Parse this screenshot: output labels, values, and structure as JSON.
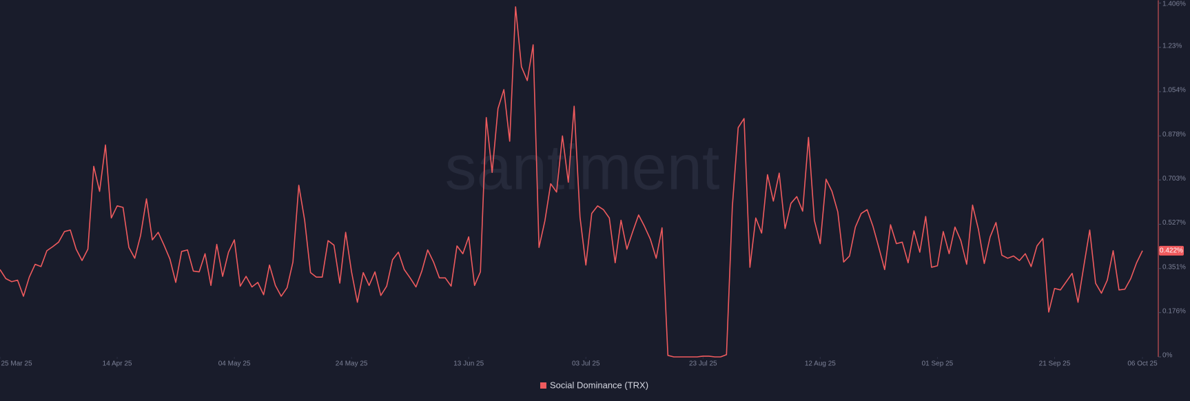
{
  "chart_data": {
    "type": "line",
    "watermark": "santiment",
    "x": [
      "2025-03-25",
      "2025-03-26",
      "2025-03-27",
      "2025-03-28",
      "2025-03-29",
      "2025-03-30",
      "2025-03-31",
      "2025-04-01",
      "2025-04-02",
      "2025-04-03",
      "2025-04-04",
      "2025-04-05",
      "2025-04-06",
      "2025-04-07",
      "2025-04-08",
      "2025-04-09",
      "2025-04-10",
      "2025-04-11",
      "2025-04-12",
      "2025-04-13",
      "2025-04-14",
      "2025-04-15",
      "2025-04-16",
      "2025-04-17",
      "2025-04-18",
      "2025-04-19",
      "2025-04-20",
      "2025-04-21",
      "2025-04-22",
      "2025-04-23",
      "2025-04-24",
      "2025-04-25",
      "2025-04-26",
      "2025-04-27",
      "2025-04-28",
      "2025-04-29",
      "2025-04-30",
      "2025-05-01",
      "2025-05-02",
      "2025-05-03",
      "2025-05-04",
      "2025-05-05",
      "2025-05-06",
      "2025-05-07",
      "2025-05-08",
      "2025-05-09",
      "2025-05-10",
      "2025-05-11",
      "2025-05-12",
      "2025-05-13",
      "2025-05-14",
      "2025-05-15",
      "2025-05-16",
      "2025-05-17",
      "2025-05-18",
      "2025-05-19",
      "2025-05-20",
      "2025-05-21",
      "2025-05-22",
      "2025-05-23",
      "2025-05-24",
      "2025-05-25",
      "2025-05-26",
      "2025-05-27",
      "2025-05-28",
      "2025-05-29",
      "2025-05-30",
      "2025-05-31",
      "2025-06-01",
      "2025-06-02",
      "2025-06-03",
      "2025-06-04",
      "2025-06-05",
      "2025-06-06",
      "2025-06-07",
      "2025-06-08",
      "2025-06-09",
      "2025-06-10",
      "2025-06-11",
      "2025-06-12",
      "2025-06-13",
      "2025-06-14",
      "2025-06-15",
      "2025-06-16",
      "2025-06-17",
      "2025-06-18",
      "2025-06-19",
      "2025-06-20",
      "2025-06-21",
      "2025-06-22",
      "2025-06-23",
      "2025-06-24",
      "2025-06-25",
      "2025-06-26",
      "2025-06-27",
      "2025-06-28",
      "2025-06-29",
      "2025-06-30",
      "2025-07-01",
      "2025-07-02",
      "2025-07-03",
      "2025-07-04",
      "2025-07-05",
      "2025-07-06",
      "2025-07-07",
      "2025-07-08",
      "2025-07-09",
      "2025-07-10",
      "2025-07-11",
      "2025-07-12",
      "2025-07-13",
      "2025-07-14",
      "2025-07-15",
      "2025-07-16",
      "2025-07-17",
      "2025-07-18",
      "2025-07-19",
      "2025-07-20",
      "2025-07-21",
      "2025-07-22",
      "2025-07-23",
      "2025-07-24",
      "2025-07-25",
      "2025-07-26",
      "2025-07-27",
      "2025-07-28",
      "2025-07-29",
      "2025-07-30",
      "2025-07-31",
      "2025-08-01",
      "2025-08-02",
      "2025-08-03",
      "2025-08-04",
      "2025-08-05",
      "2025-08-06",
      "2025-08-07",
      "2025-08-08",
      "2025-08-09",
      "2025-08-10",
      "2025-08-11",
      "2025-08-12",
      "2025-08-13",
      "2025-08-14",
      "2025-08-15",
      "2025-08-16",
      "2025-08-17",
      "2025-08-18",
      "2025-08-19",
      "2025-08-20",
      "2025-08-21",
      "2025-08-22",
      "2025-08-23",
      "2025-08-24",
      "2025-08-25",
      "2025-08-26",
      "2025-08-27",
      "2025-08-28",
      "2025-08-29",
      "2025-08-30",
      "2025-08-31",
      "2025-09-01",
      "2025-09-02",
      "2025-09-03",
      "2025-09-04",
      "2025-09-05",
      "2025-09-06",
      "2025-09-07",
      "2025-09-08",
      "2025-09-09",
      "2025-09-10",
      "2025-09-11",
      "2025-09-12",
      "2025-09-13",
      "2025-09-14",
      "2025-09-15",
      "2025-09-16",
      "2025-09-17",
      "2025-09-18",
      "2025-09-19",
      "2025-09-20",
      "2025-09-21",
      "2025-09-22",
      "2025-09-23",
      "2025-09-24",
      "2025-09-25",
      "2025-09-26",
      "2025-09-27",
      "2025-09-28",
      "2025-09-29",
      "2025-09-30",
      "2025-10-01",
      "2025-10-02",
      "2025-10-03",
      "2025-10-04",
      "2025-10-05",
      "2025-10-06"
    ],
    "series": [
      {
        "name": "Social Dominance (TRX)",
        "color": "#f05b5e",
        "values": [
          0.347,
          0.311,
          0.299,
          0.305,
          0.241,
          0.317,
          0.368,
          0.359,
          0.422,
          0.438,
          0.456,
          0.498,
          0.504,
          0.428,
          0.383,
          0.428,
          0.757,
          0.658,
          0.842,
          0.552,
          0.6,
          0.594,
          0.435,
          0.392,
          0.483,
          0.628,
          0.465,
          0.495,
          0.444,
          0.389,
          0.296,
          0.419,
          0.425,
          0.341,
          0.338,
          0.41,
          0.284,
          0.447,
          0.32,
          0.416,
          0.465,
          0.281,
          0.32,
          0.278,
          0.296,
          0.247,
          0.365,
          0.284,
          0.241,
          0.275,
          0.377,
          0.682,
          0.543,
          0.335,
          0.317,
          0.317,
          0.462,
          0.444,
          0.293,
          0.495,
          0.338,
          0.217,
          0.335,
          0.284,
          0.338,
          0.244,
          0.281,
          0.386,
          0.416,
          0.347,
          0.314,
          0.278,
          0.341,
          0.425,
          0.377,
          0.314,
          0.314,
          0.281,
          0.441,
          0.41,
          0.477,
          0.284,
          0.338,
          0.951,
          0.733,
          0.987,
          1.062,
          0.857,
          1.391,
          1.153,
          1.098,
          1.24,
          0.435,
          0.54,
          0.688,
          0.655,
          0.878,
          0.694,
          0.996,
          0.555,
          0.365,
          0.57,
          0.6,
          0.585,
          0.552,
          0.374,
          0.543,
          0.428,
          0.498,
          0.564,
          0.519,
          0.468,
          0.392,
          0.513,
          0.006,
          0,
          0,
          0,
          0,
          0,
          0.003,
          0.003,
          0,
          0,
          0.009,
          0.597,
          0.911,
          0.947,
          0.356,
          0.552,
          0.492,
          0.724,
          0.619,
          0.73,
          0.51,
          0.61,
          0.637,
          0.579,
          0.872,
          0.543,
          0.45,
          0.706,
          0.658,
          0.576,
          0.377,
          0.401,
          0.516,
          0.57,
          0.585,
          0.519,
          0.435,
          0.347,
          0.525,
          0.45,
          0.456,
          0.374,
          0.501,
          0.416,
          0.558,
          0.356,
          0.362,
          0.498,
          0.41,
          0.516,
          0.462,
          0.368,
          0.603,
          0.507,
          0.371,
          0.477,
          0.534,
          0.404,
          0.392,
          0.401,
          0.383,
          0.41,
          0.359,
          0.441,
          0.471,
          0.178,
          0.272,
          0.266,
          0.299,
          0.332,
          0.217,
          0.362,
          0.504,
          0.293,
          0.253,
          0.305,
          0.422,
          0.266,
          0.269,
          0.311,
          0.374,
          0.422
        ]
      }
    ],
    "last_value_label": "0.422%",
    "xlim": [
      "2025-03-25",
      "2025-10-06"
    ],
    "xticks": [
      {
        "value": "2025-03-25",
        "label": "25 Mar 25"
      },
      {
        "value": "2025-04-14",
        "label": "14 Apr 25"
      },
      {
        "value": "2025-05-04",
        "label": "04 May 25"
      },
      {
        "value": "2025-05-24",
        "label": "24 May 25"
      },
      {
        "value": "2025-06-13",
        "label": "13 Jun 25"
      },
      {
        "value": "2025-07-03",
        "label": "03 Jul 25"
      },
      {
        "value": "2025-07-23",
        "label": "23 Jul 25"
      },
      {
        "value": "2025-08-12",
        "label": "12 Aug 25"
      },
      {
        "value": "2025-09-01",
        "label": "01 Sep 25"
      },
      {
        "value": "2025-09-21",
        "label": "21 Sep 25"
      },
      {
        "value": "2025-10-06",
        "label": "06 Oct 25"
      }
    ],
    "ylim": [
      0,
      1.406
    ],
    "yticks": [
      {
        "value": 0,
        "label": "0%"
      },
      {
        "value": 0.176,
        "label": "0.176%"
      },
      {
        "value": 0.351,
        "label": "0.351%"
      },
      {
        "value": 0.527,
        "label": "0.527%"
      },
      {
        "value": 0.703,
        "label": "0.703%"
      },
      {
        "value": 0.878,
        "label": "0.878%"
      },
      {
        "value": 1.054,
        "label": "1.054%"
      },
      {
        "value": 1.23,
        "label": "1.23%"
      },
      {
        "value": 1.406,
        "label": "1.406%"
      }
    ]
  }
}
